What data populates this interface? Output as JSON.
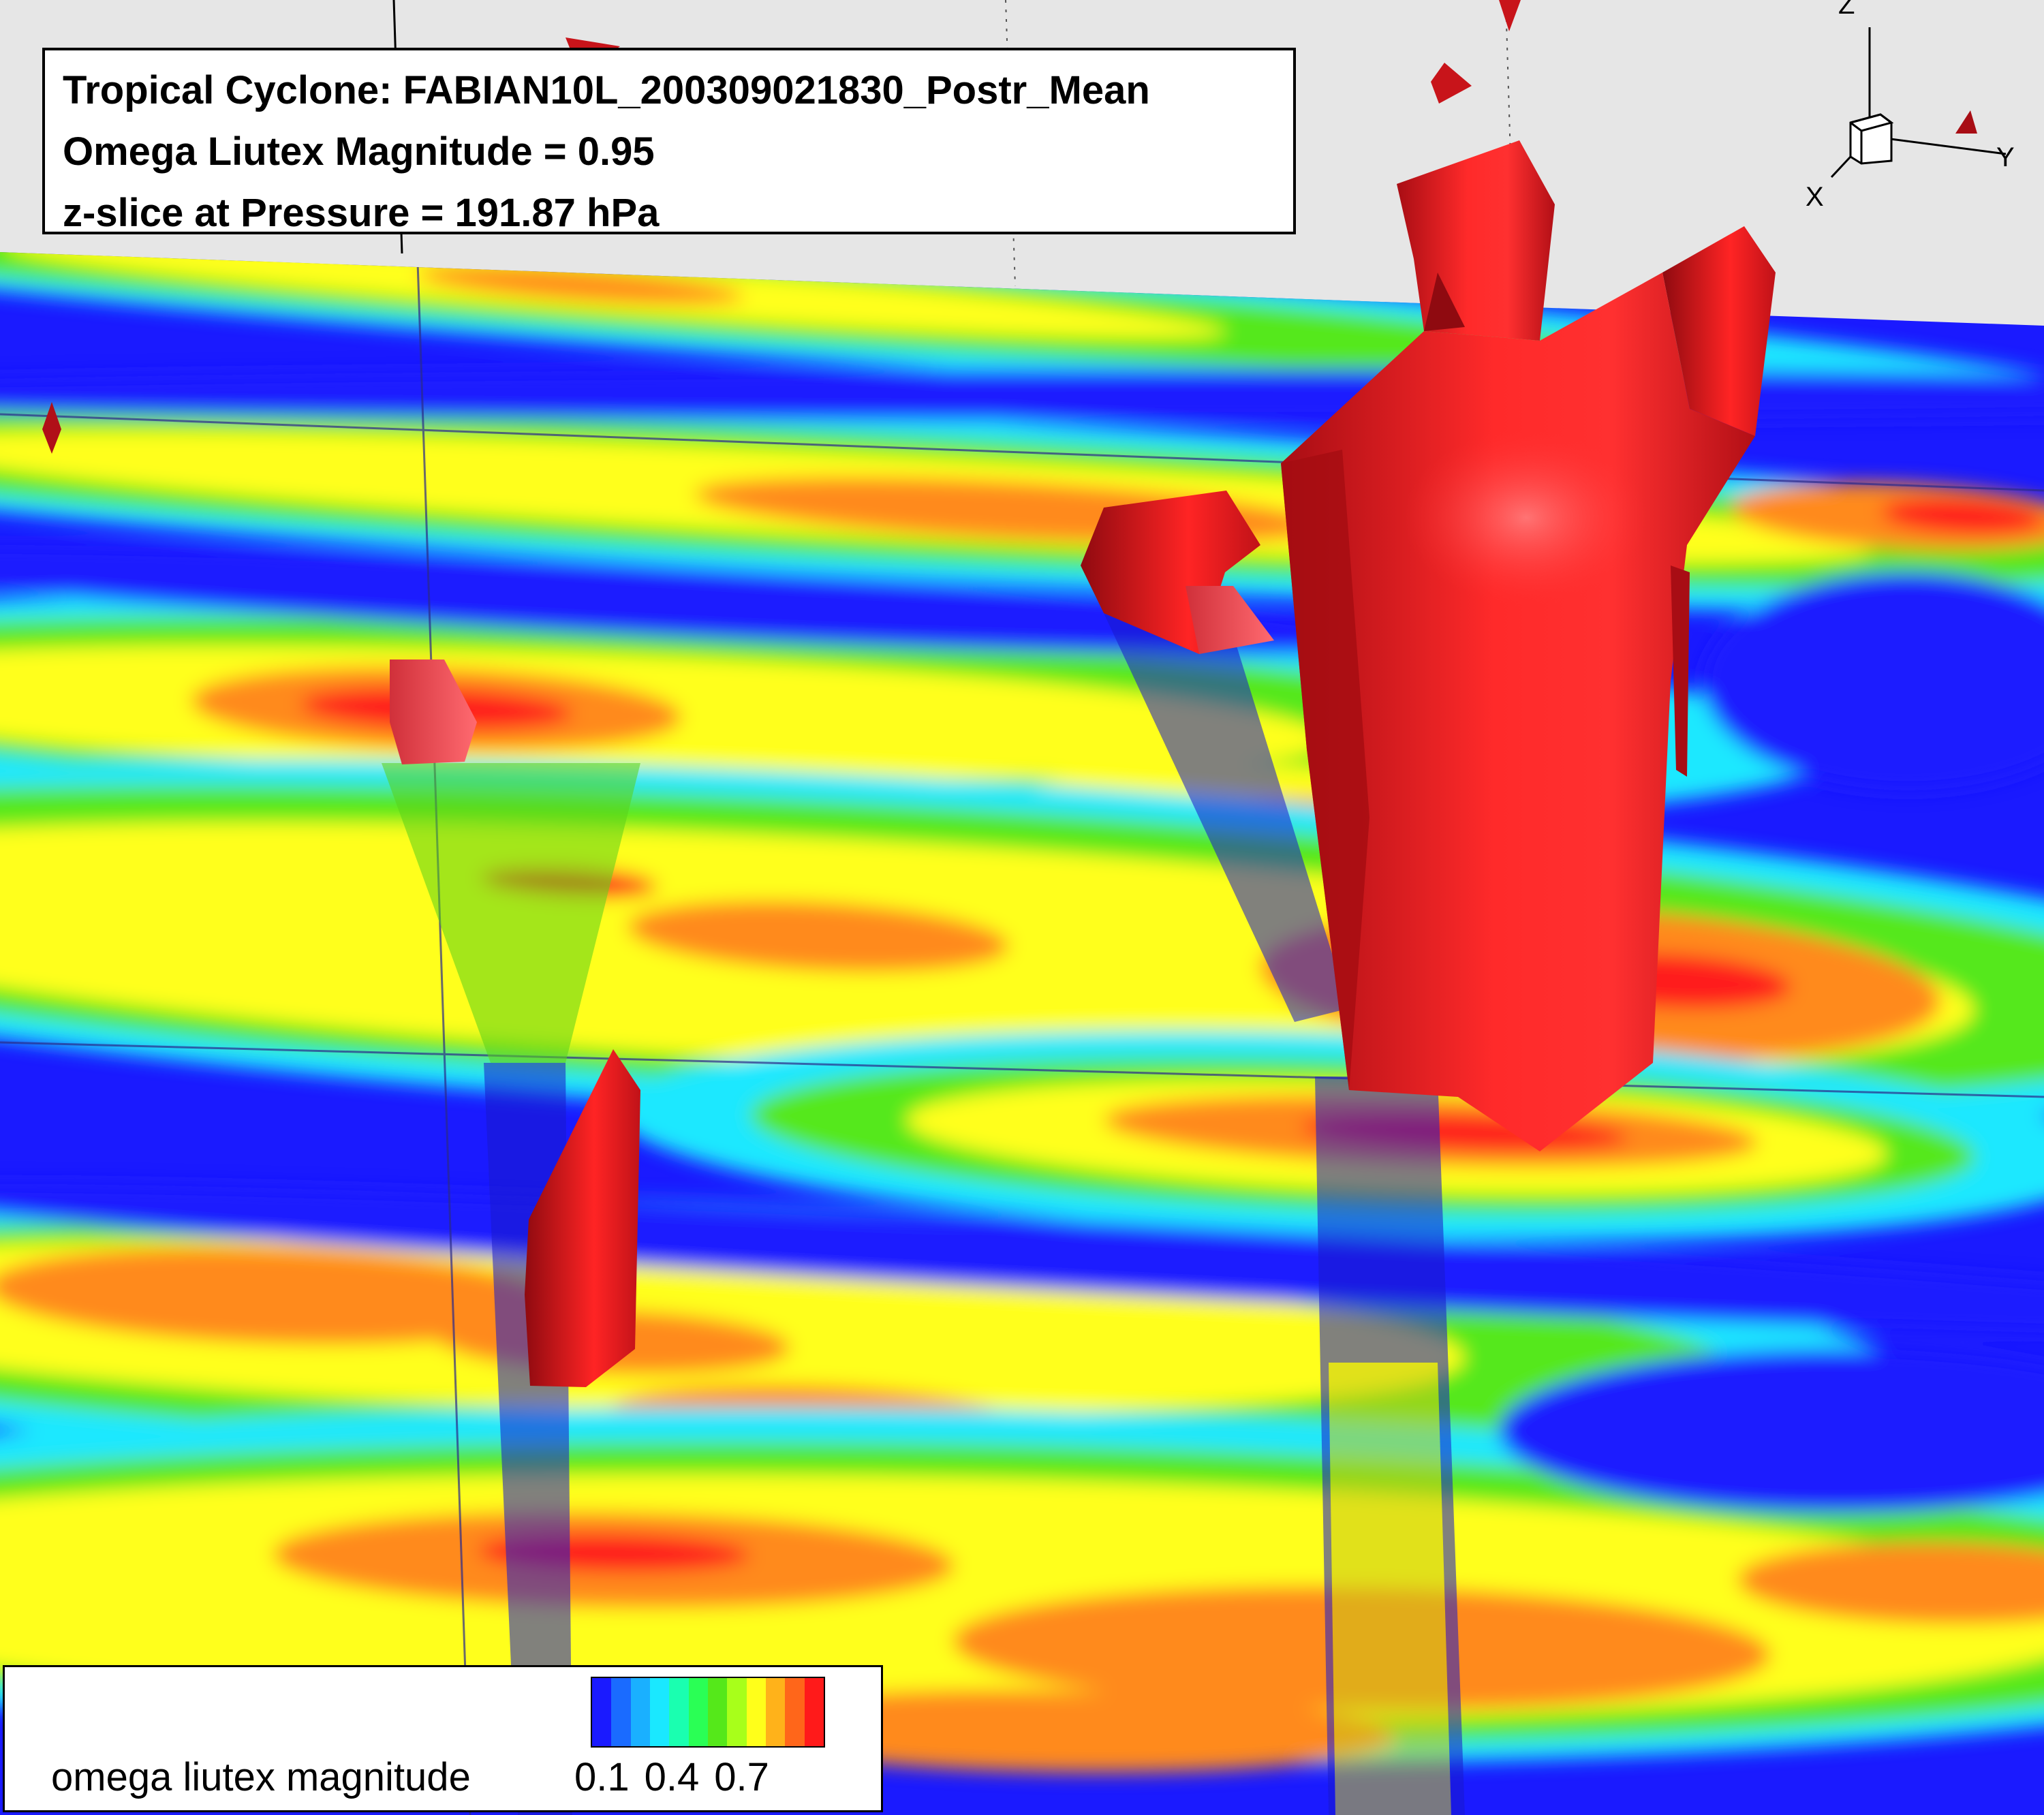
{
  "annotation": {
    "line1": "Tropical Cyclone: FABIAN10L_200309021830_Postr_Mean",
    "line2": "Omega Liutex Magnitude = 0.95",
    "line3": "z-slice at Pressure = 191.87 hPa"
  },
  "legend": {
    "label": "omega liutex magnitude",
    "ticks": [
      "0.1",
      "0.4",
      "0.7"
    ],
    "colors": [
      "#1a1aff",
      "#1a6bff",
      "#1ab0ff",
      "#1ae8ff",
      "#1affb0",
      "#2aff55",
      "#55e81a",
      "#a8ff1a",
      "#ffff1a",
      "#ffb21a",
      "#ff661a",
      "#ff1a1a"
    ]
  },
  "axes": {
    "x": "X",
    "y": "Y",
    "z": "Z"
  },
  "colors": {
    "background": "#e6e6e6",
    "low": "#1a1aff",
    "mid_cyan": "#1ae8ff",
    "mid_green": "#55e81a",
    "yellow": "#ffff1a",
    "orange": "#ff8a1a",
    "high": "#ff1a1a",
    "isosurface": "#e81a1a"
  }
}
